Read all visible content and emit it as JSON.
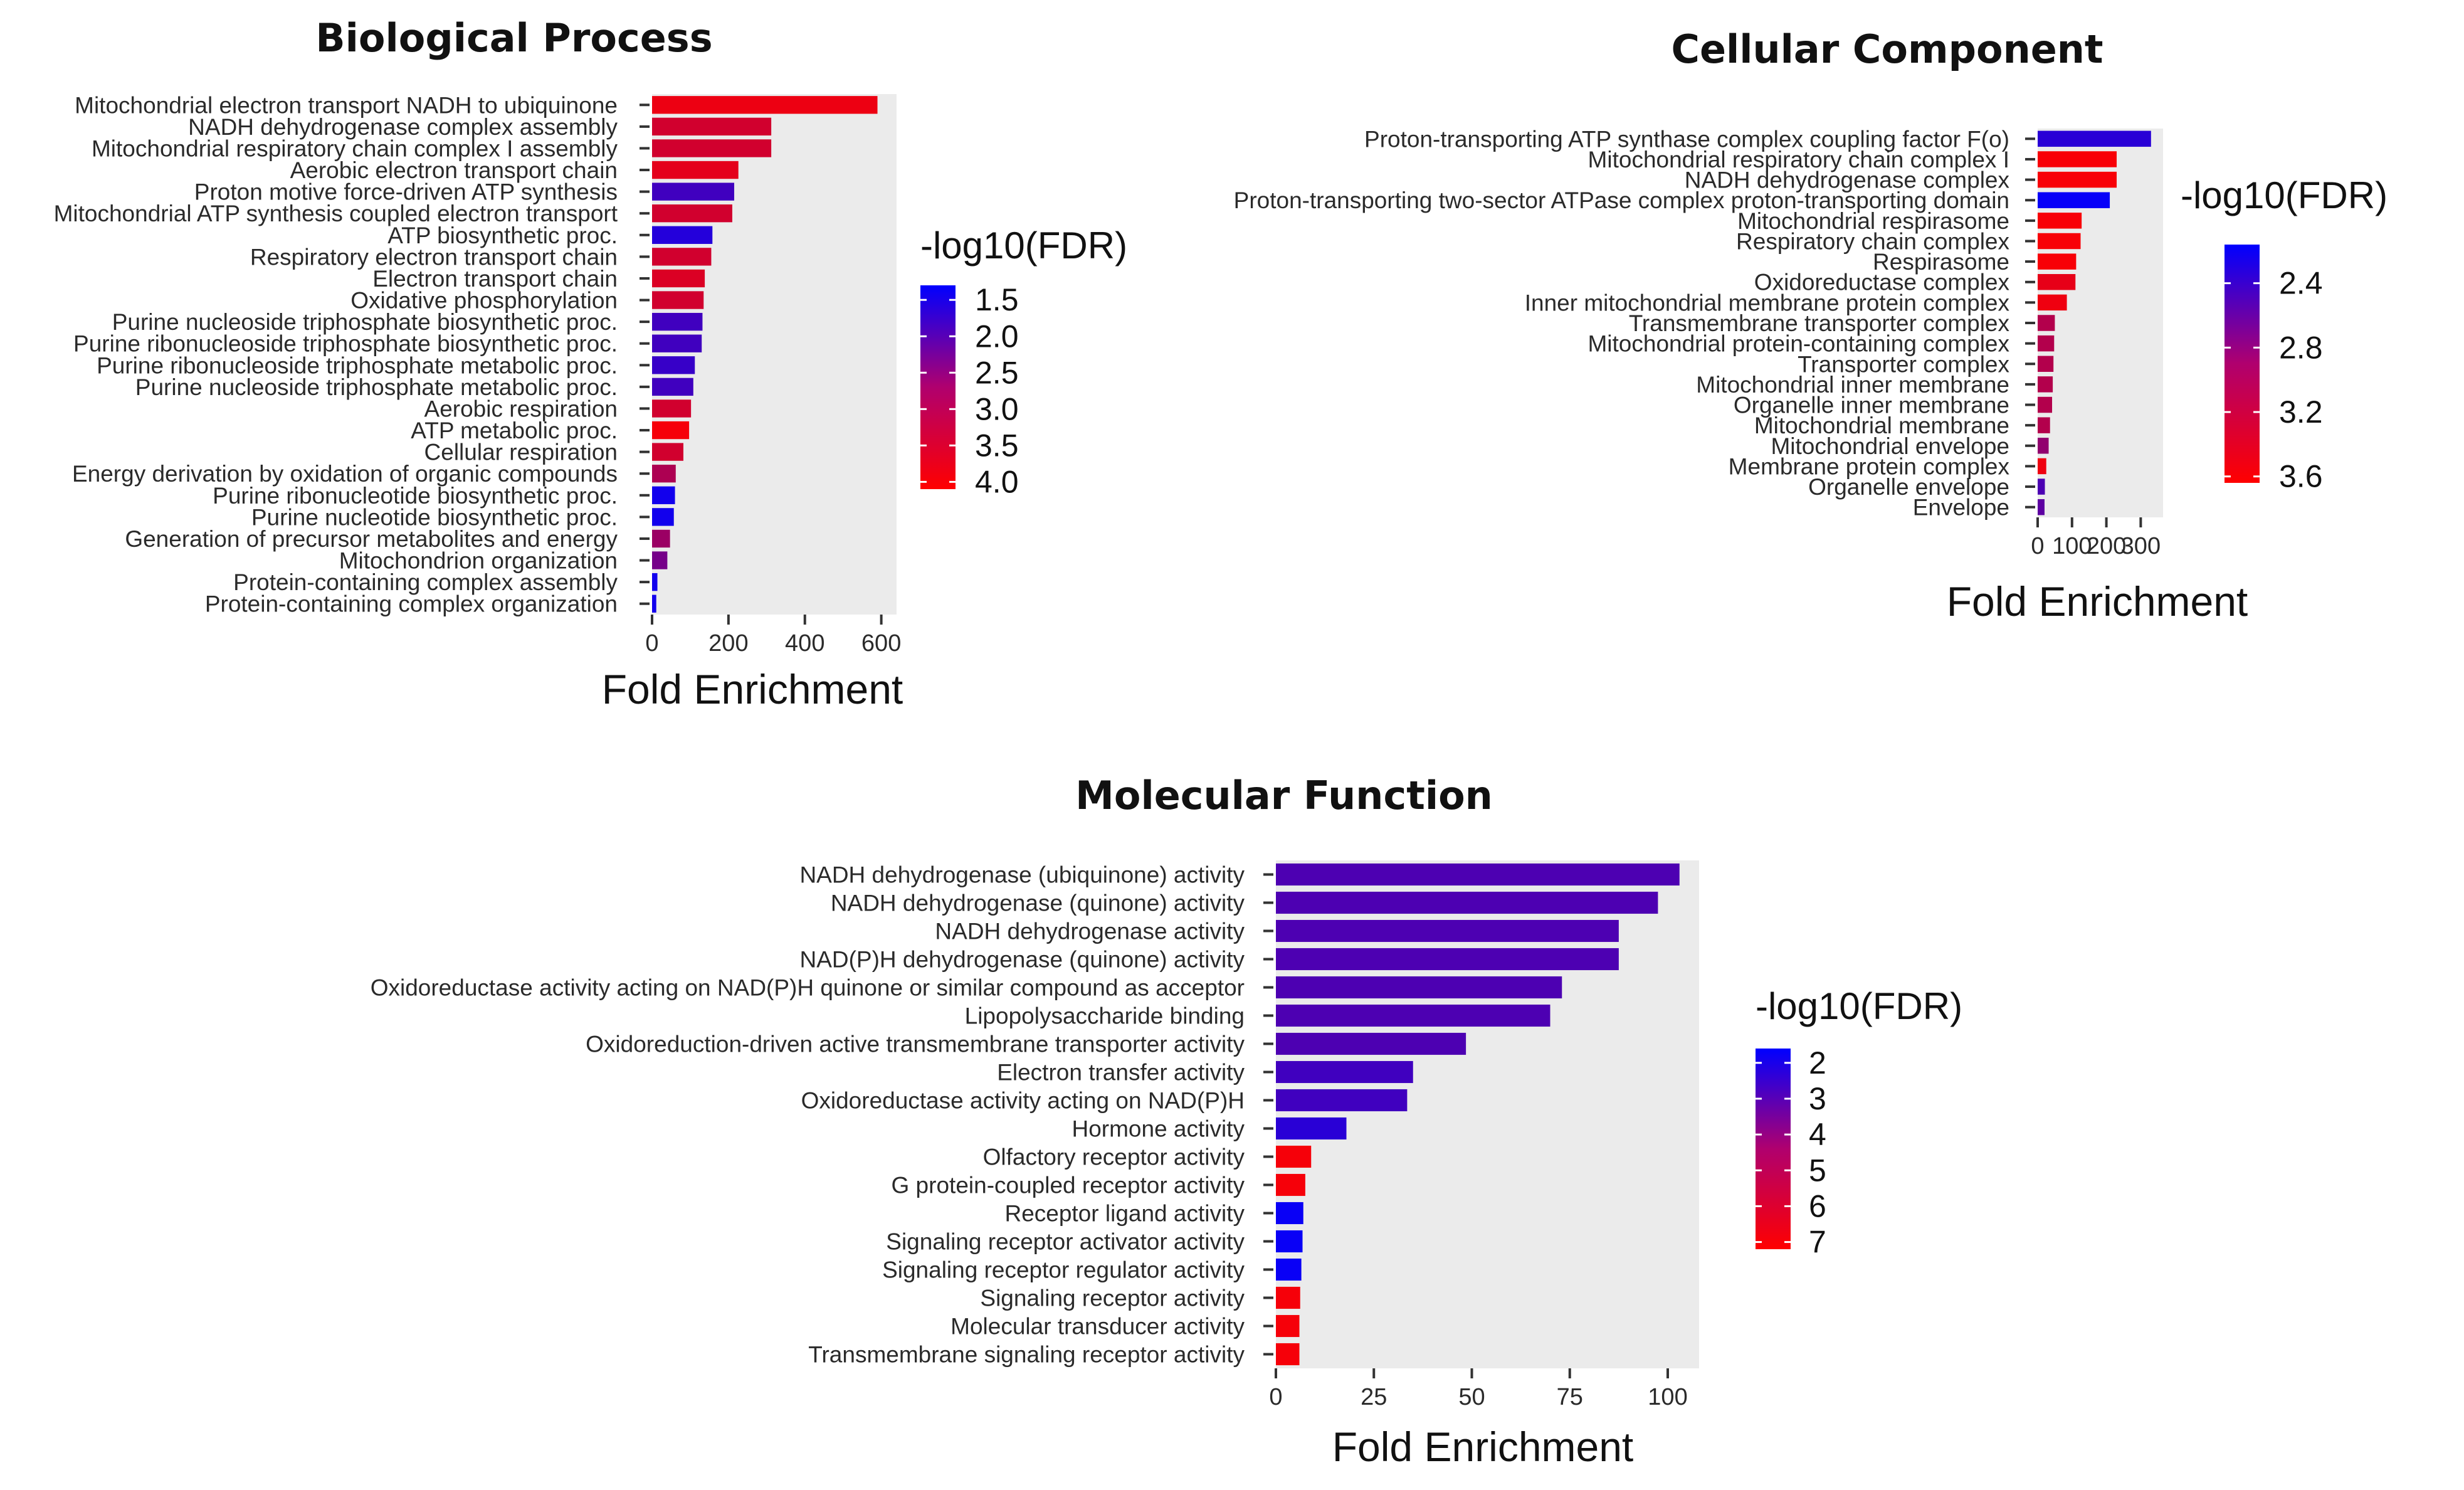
{
  "chart_data": [
    {
      "type": "bar",
      "orientation": "horizontal",
      "title": "Biological Process",
      "xlabel": "Fold Enrichment",
      "ylabel": "",
      "xlim": [
        0,
        640
      ],
      "xticks": [
        0,
        200,
        400,
        600
      ],
      "legend": {
        "title": "-log10(FDR)",
        "position": "right",
        "low_color": "#0000ff",
        "high_color": "#ff0000",
        "ticks": [
          "1.5",
          "2.0",
          "2.5",
          "3.0",
          "3.5",
          "4.0"
        ],
        "range": [
          1.3,
          4.1
        ]
      },
      "categories": [
        "Mitochondrial electron transport NADH to ubiquinone",
        "NADH dehydrogenase complex assembly",
        "Mitochondrial respiratory chain complex I assembly",
        "Aerobic electron transport chain",
        "Proton motive force-driven ATP synthesis",
        "Mitochondrial ATP synthesis coupled electron transport",
        "ATP biosynthetic proc.",
        "Respiratory electron transport chain",
        "Electron transport chain",
        "Oxidative phosphorylation",
        "Purine nucleoside triphosphate biosynthetic proc.",
        "Purine ribonucleoside triphosphate biosynthetic proc.",
        "Purine ribonucleoside triphosphate metabolic proc.",
        "Purine nucleoside triphosphate metabolic proc.",
        "Aerobic respiration",
        "ATP metabolic proc.",
        "Cellular respiration",
        "Energy derivation by oxidation of organic compounds",
        "Purine ribonucleotide biosynthetic proc.",
        "Purine nucleotide biosynthetic proc.",
        "Generation of precursor metabolites and energy",
        "Mitochondrion organization",
        "Protein-containing complex assembly",
        "Protein-containing complex organization"
      ],
      "values": [
        590,
        312,
        312,
        226,
        215,
        210,
        158,
        155,
        138,
        135,
        132,
        130,
        112,
        108,
        102,
        97,
        82,
        62,
        60,
        57,
        47,
        40,
        14,
        11
      ],
      "color_values": [
        3.9,
        3.6,
        3.6,
        3.8,
        2.0,
        3.6,
        1.7,
        3.6,
        3.7,
        3.6,
        2.0,
        2.0,
        1.9,
        2.0,
        3.6,
        4.0,
        3.6,
        3.2,
        1.5,
        1.5,
        3.0,
        2.6,
        1.5,
        1.5
      ]
    },
    {
      "type": "bar",
      "orientation": "horizontal",
      "title": "Cellular Component",
      "xlabel": "Fold Enrichment",
      "ylabel": "",
      "xlim": [
        0,
        365
      ],
      "xticks": [
        0,
        100,
        200,
        300
      ],
      "xtick_labels": [
        "0",
        "100",
        "200",
        "300"
      ],
      "legend": {
        "title": "-log10(FDR)",
        "position": "right",
        "low_color": "#0000ff",
        "high_color": "#ff0000",
        "ticks": [
          "2.4",
          "2.8",
          "3.2",
          "3.6"
        ],
        "range": [
          2.16,
          3.64
        ]
      },
      "categories": [
        "Proton-transporting ATP synthase complex coupling factor F(o)",
        "Mitochondrial respiratory chain complex I",
        "NADH dehydrogenase complex",
        "Proton-transporting two-sector ATPase complex proton-transporting domain",
        "Mitochondrial respirasome",
        "Respiratory chain complex",
        "Respirasome",
        "Oxidoreductase complex",
        "Inner mitochondrial membrane protein complex",
        "Transmembrane transporter complex",
        "Mitochondrial protein-containing complex",
        "Transporter complex",
        "Mitochondrial inner membrane",
        "Organelle inner membrane",
        "Mitochondrial membrane",
        "Mitochondrial envelope",
        "Membrane protein complex",
        "Organelle envelope",
        "Envelope"
      ],
      "values": [
        330,
        230,
        230,
        210,
        128,
        125,
        112,
        110,
        85,
        50,
        48,
        46,
        44,
        42,
        36,
        32,
        25,
        21,
        20
      ],
      "color_values": [
        2.4,
        3.6,
        3.6,
        2.2,
        3.6,
        3.6,
        3.6,
        3.5,
        3.55,
        3.2,
        3.2,
        3.2,
        3.2,
        3.2,
        3.2,
        3.0,
        3.55,
        2.6,
        2.7
      ]
    },
    {
      "type": "bar",
      "orientation": "horizontal",
      "title": "Molecular Function",
      "xlabel": "Fold Enrichment",
      "ylabel": "",
      "xlim": [
        0,
        108
      ],
      "xticks": [
        0,
        25,
        50,
        75,
        100
      ],
      "legend": {
        "title": "-log10(FDR)",
        "position": "right",
        "low_color": "#0000ff",
        "high_color": "#ff0000",
        "ticks": [
          "2",
          "3",
          "4",
          "5",
          "6",
          "7"
        ],
        "range": [
          1.6,
          7.2
        ]
      },
      "categories": [
        "NADH dehydrogenase (ubiquinone) activity",
        "NADH dehydrogenase (quinone) activity",
        "NADH dehydrogenase activity",
        "NAD(P)H dehydrogenase (quinone) activity",
        "Oxidoreductase activity acting on NAD(P)H quinone or similar compound as acceptor",
        "Lipopolysaccharide binding",
        "Oxidoreduction-driven active transmembrane transporter activity",
        "Electron transfer activity",
        "Oxidoreductase activity acting on NAD(P)H",
        "Hormone activity",
        "Olfactory receptor activity",
        "G protein-coupled receptor activity",
        "Receptor ligand activity",
        "Signaling receptor activator activity",
        "Signaling receptor regulator activity",
        "Signaling receptor activity",
        "Molecular transducer activity",
        "Transmembrane signaling receptor activity"
      ],
      "values": [
        103,
        97.5,
        87.5,
        87.5,
        73,
        70,
        48.5,
        35,
        33.5,
        18,
        9,
        7.5,
        7,
        6.8,
        6.5,
        6.2,
        6.0,
        6.0
      ],
      "color_values": [
        3.3,
        3.3,
        3.3,
        3.3,
        3.3,
        3.3,
        3.3,
        3.0,
        3.0,
        2.5,
        7.0,
        7.0,
        1.8,
        1.8,
        1.8,
        7.0,
        7.0,
        7.0
      ]
    }
  ]
}
